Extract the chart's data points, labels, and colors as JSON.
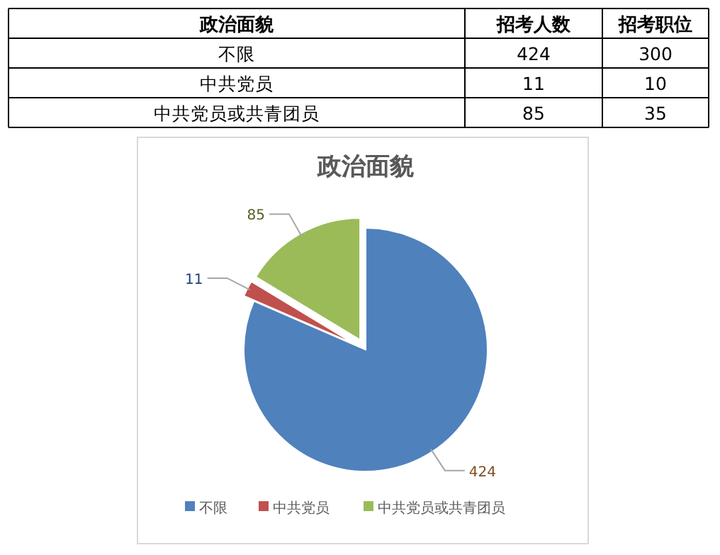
{
  "chart_data": [
    {
      "type": "other",
      "xlabel": "政治面貌",
      "categories": [
        "不限",
        "中共党员",
        "中共党员或共青团员"
      ],
      "data_labels": true,
      "series": [
        {
          "name": "招考人数",
          "values": [
            424,
            11,
            85
          ]
        },
        {
          "name": "招考职位",
          "values": [
            300,
            10,
            35
          ]
        }
      ]
    },
    {
      "type": "pie",
      "title": "政治面貌",
      "categories": [
        "不限",
        "中共党员",
        "中共党员或共青团员"
      ],
      "values": [
        424,
        11,
        85
      ],
      "colors": [
        "#4f81bd",
        "#c0504d",
        "#9bbb59"
      ],
      "data_labels": true,
      "legend": "bottom"
    }
  ]
}
